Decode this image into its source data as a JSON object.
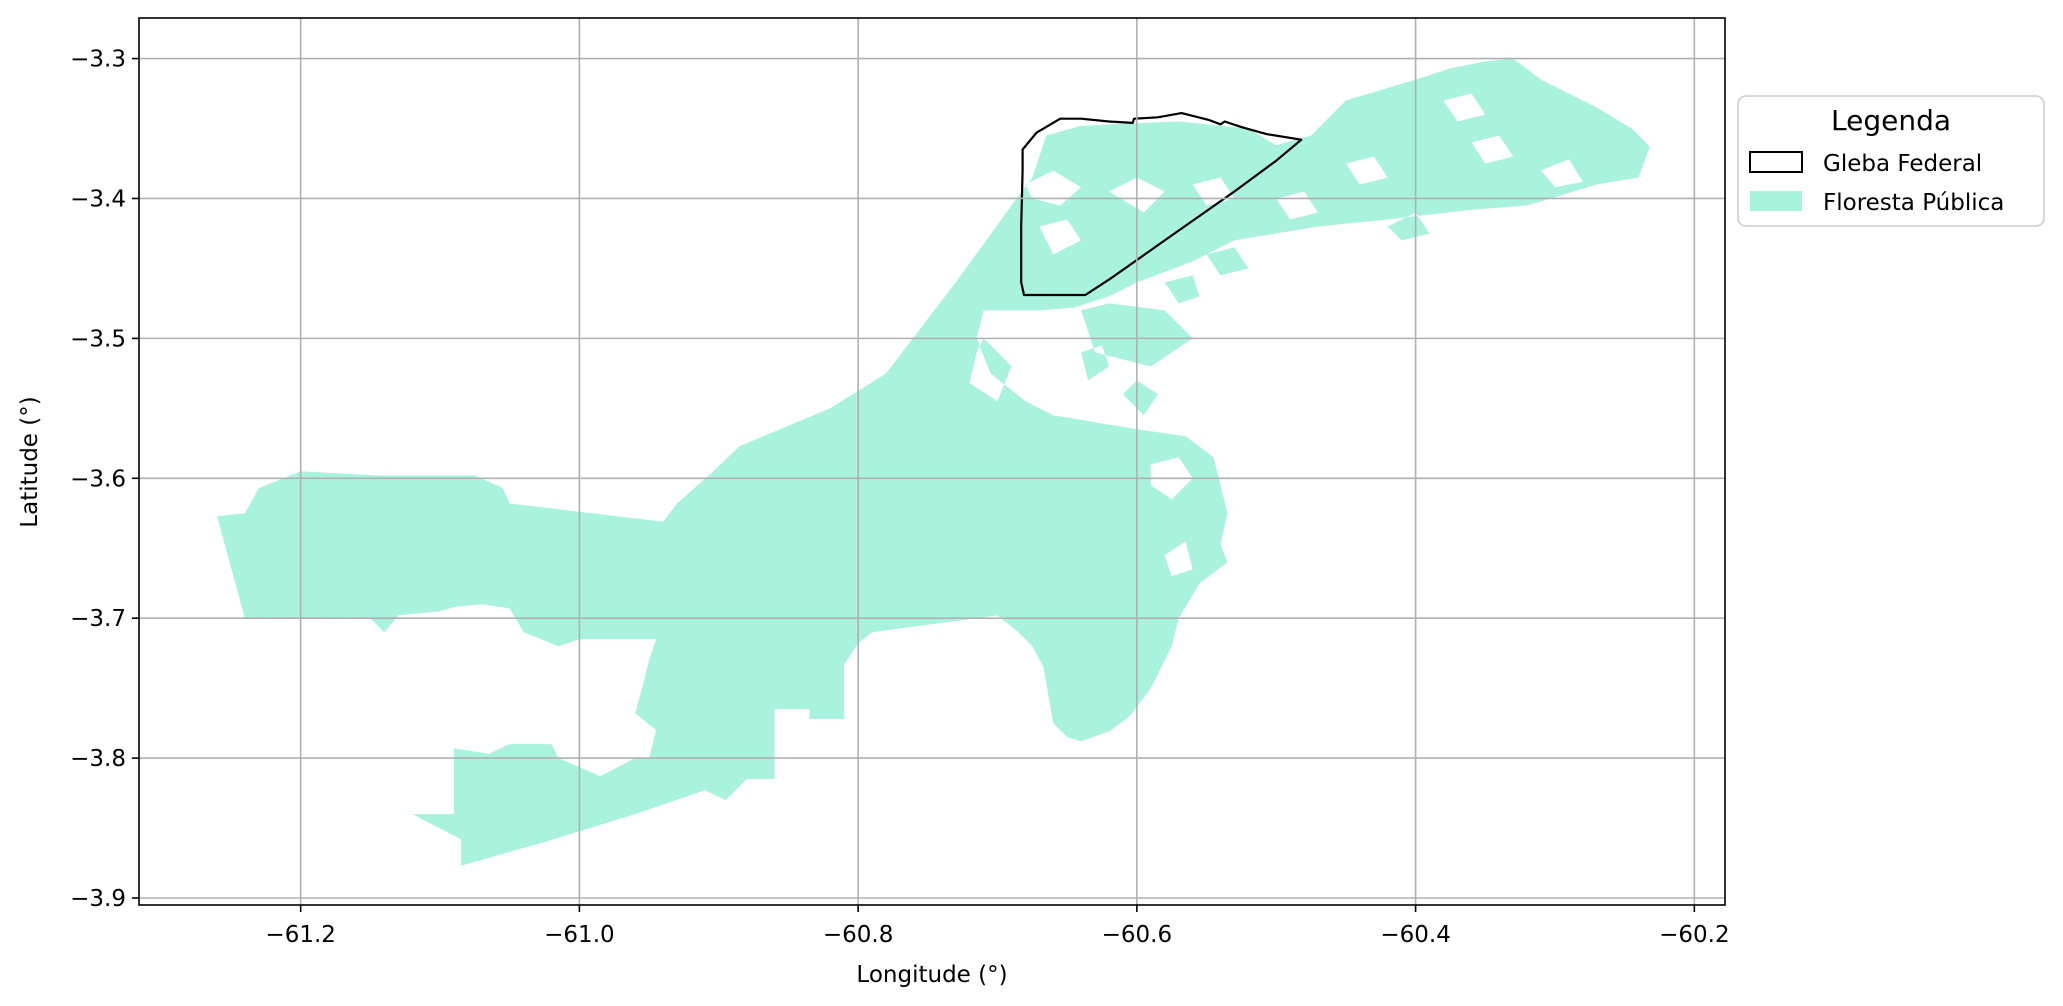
{
  "chart_data": {
    "type": "map",
    "xlabel": "Longitude (°)",
    "ylabel": "Latitude (°)",
    "xlim": [
      -61.316,
      -60.178
    ],
    "ylim": [
      -3.905,
      -3.271
    ],
    "grid": true,
    "x_ticks": [
      {
        "value": -61.2,
        "label": "−61.2"
      },
      {
        "value": -61.0,
        "label": "−61.0"
      },
      {
        "value": -60.8,
        "label": "−60.8"
      },
      {
        "value": -60.6,
        "label": "−60.6"
      },
      {
        "value": -60.4,
        "label": "−60.4"
      },
      {
        "value": -60.2,
        "label": "−60.2"
      }
    ],
    "y_ticks": [
      {
        "value": -3.3,
        "label": "−3.3"
      },
      {
        "value": -3.4,
        "label": "−3.4"
      },
      {
        "value": -3.5,
        "label": "−3.5"
      },
      {
        "value": -3.6,
        "label": "−3.6"
      },
      {
        "value": -3.7,
        "label": "−3.7"
      },
      {
        "value": -3.8,
        "label": "−3.8"
      },
      {
        "value": -3.9,
        "label": "−3.9"
      }
    ],
    "legend": {
      "title": "Legenda",
      "placement": "outside-top-right",
      "items": [
        {
          "label": "Gleba Federal",
          "style": "outline",
          "color": "#000000"
        },
        {
          "label": "Floresta Pública",
          "style": "fill",
          "color": "#a8f2de"
        }
      ]
    },
    "layers": [
      {
        "name": "Floresta Pública",
        "color": "#a8f2de",
        "polygons": [
          [
            [
              -61.26,
              -3.627
            ],
            [
              -61.24,
              -3.625
            ],
            [
              -61.23,
              -3.607
            ],
            [
              -61.2,
              -3.595
            ],
            [
              -61.145,
              -3.598
            ],
            [
              -61.075,
              -3.598
            ],
            [
              -61.055,
              -3.607
            ],
            [
              -61.05,
              -3.618
            ],
            [
              -60.94,
              -3.631
            ],
            [
              -60.93,
              -3.618
            ],
            [
              -60.905,
              -3.596
            ],
            [
              -60.885,
              -3.577
            ],
            [
              -60.82,
              -3.55
            ],
            [
              -60.78,
              -3.525
            ],
            [
              -60.73,
              -3.46
            ],
            [
              -60.69,
              -3.405
            ],
            [
              -60.675,
              -3.385
            ],
            [
              -60.665,
              -3.355
            ],
            [
              -60.64,
              -3.348
            ],
            [
              -60.57,
              -3.345
            ],
            [
              -60.52,
              -3.35
            ],
            [
              -60.5,
              -3.362
            ],
            [
              -60.475,
              -3.355
            ],
            [
              -60.45,
              -3.33
            ],
            [
              -60.4,
              -3.315
            ],
            [
              -60.375,
              -3.307
            ],
            [
              -60.35,
              -3.302
            ],
            [
              -60.33,
              -3.3
            ],
            [
              -60.31,
              -3.315
            ],
            [
              -60.27,
              -3.335
            ],
            [
              -60.245,
              -3.35
            ],
            [
              -60.232,
              -3.363
            ],
            [
              -60.24,
              -3.385
            ],
            [
              -60.27,
              -3.39
            ],
            [
              -60.32,
              -3.405
            ],
            [
              -60.36,
              -3.408
            ],
            [
              -60.42,
              -3.415
            ],
            [
              -60.47,
              -3.42
            ],
            [
              -60.53,
              -3.43
            ],
            [
              -60.56,
              -3.445
            ],
            [
              -60.6,
              -3.46
            ],
            [
              -60.62,
              -3.47
            ],
            [
              -60.645,
              -3.478
            ],
            [
              -60.67,
              -3.48
            ],
            [
              -60.71,
              -3.48
            ],
            [
              -60.715,
              -3.5
            ],
            [
              -60.705,
              -3.525
            ],
            [
              -60.68,
              -3.545
            ],
            [
              -60.66,
              -3.555
            ],
            [
              -60.63,
              -3.56
            ],
            [
              -60.6,
              -3.565
            ],
            [
              -60.565,
              -3.57
            ],
            [
              -60.545,
              -3.585
            ],
            [
              -60.54,
              -3.605
            ],
            [
              -60.535,
              -3.625
            ],
            [
              -60.54,
              -3.647
            ],
            [
              -60.535,
              -3.66
            ],
            [
              -60.555,
              -3.675
            ],
            [
              -60.57,
              -3.7
            ],
            [
              -60.575,
              -3.72
            ],
            [
              -60.59,
              -3.75
            ],
            [
              -60.605,
              -3.77
            ],
            [
              -60.62,
              -3.781
            ],
            [
              -60.64,
              -3.788
            ],
            [
              -60.65,
              -3.785
            ],
            [
              -60.66,
              -3.775
            ],
            [
              -60.667,
              -3.735
            ],
            [
              -60.675,
              -3.72
            ],
            [
              -60.685,
              -3.71
            ],
            [
              -60.7,
              -3.698
            ],
            [
              -60.79,
              -3.71
            ],
            [
              -60.8,
              -3.718
            ],
            [
              -60.81,
              -3.733
            ],
            [
              -60.81,
              -3.772
            ],
            [
              -60.835,
              -3.772
            ],
            [
              -60.835,
              -3.765
            ],
            [
              -60.86,
              -3.765
            ],
            [
              -60.86,
              -3.815
            ],
            [
              -60.88,
              -3.815
            ],
            [
              -60.895,
              -3.83
            ],
            [
              -60.91,
              -3.823
            ],
            [
              -60.96,
              -3.84
            ],
            [
              -61.025,
              -3.86
            ],
            [
              -61.085,
              -3.877
            ],
            [
              -61.085,
              -3.858
            ],
            [
              -61.12,
              -3.84
            ],
            [
              -61.09,
              -3.84
            ],
            [
              -61.09,
              -3.793
            ],
            [
              -61.065,
              -3.797
            ],
            [
              -61.05,
              -3.79
            ],
            [
              -61.02,
              -3.79
            ],
            [
              -61.015,
              -3.8
            ],
            [
              -60.985,
              -3.813
            ],
            [
              -60.96,
              -3.8
            ],
            [
              -60.95,
              -3.8
            ],
            [
              -60.945,
              -3.78
            ],
            [
              -60.96,
              -3.768
            ],
            [
              -60.955,
              -3.75
            ],
            [
              -60.95,
              -3.73
            ],
            [
              -60.945,
              -3.715
            ],
            [
              -61.0,
              -3.715
            ],
            [
              -61.015,
              -3.72
            ],
            [
              -61.04,
              -3.71
            ],
            [
              -61.05,
              -3.693
            ],
            [
              -61.07,
              -3.69
            ],
            [
              -61.09,
              -3.692
            ],
            [
              -61.1,
              -3.695
            ],
            [
              -61.13,
              -3.698
            ],
            [
              -61.14,
              -3.71
            ],
            [
              -61.15,
              -3.7
            ],
            [
              -61.24,
              -3.7
            ]
          ]
        ],
        "holes": [
          [
            [
              -60.71,
              -3.5
            ],
            [
              -60.69,
              -3.52
            ],
            [
              -60.7,
              -3.545
            ],
            [
              -60.72,
              -3.532
            ],
            [
              -60.715,
              -3.51
            ]
          ],
          [
            [
              -60.64,
              -3.48
            ],
            [
              -60.62,
              -3.475
            ],
            [
              -60.58,
              -3.48
            ],
            [
              -60.56,
              -3.5
            ],
            [
              -60.59,
              -3.52
            ],
            [
              -60.63,
              -3.51
            ]
          ],
          [
            [
              -60.61,
              -3.54
            ],
            [
              -60.6,
              -3.53
            ],
            [
              -60.585,
              -3.54
            ],
            [
              -60.595,
              -3.555
            ]
          ],
          [
            [
              -60.59,
              -3.59
            ],
            [
              -60.57,
              -3.585
            ],
            [
              -60.56,
              -3.6
            ],
            [
              -60.575,
              -3.615
            ],
            [
              -60.59,
              -3.605
            ]
          ],
          [
            [
              -60.64,
              -3.51
            ],
            [
              -60.625,
              -3.505
            ],
            [
              -60.62,
              -3.52
            ],
            [
              -60.635,
              -3.53
            ]
          ],
          [
            [
              -60.58,
              -3.655
            ],
            [
              -60.565,
              -3.645
            ],
            [
              -60.56,
              -3.665
            ],
            [
              -60.575,
              -3.67
            ]
          ],
          [
            [
              -60.68,
              -3.39
            ],
            [
              -60.66,
              -3.38
            ],
            [
              -60.64,
              -3.392
            ],
            [
              -60.655,
              -3.405
            ],
            [
              -60.675,
              -3.4
            ]
          ],
          [
            [
              -60.62,
              -3.395
            ],
            [
              -60.6,
              -3.385
            ],
            [
              -60.58,
              -3.395
            ],
            [
              -60.595,
              -3.41
            ]
          ],
          [
            [
              -60.56,
              -3.39
            ],
            [
              -60.54,
              -3.385
            ],
            [
              -60.53,
              -3.4
            ],
            [
              -60.55,
              -3.405
            ]
          ],
          [
            [
              -60.67,
              -3.42
            ],
            [
              -60.65,
              -3.415
            ],
            [
              -60.64,
              -3.43
            ],
            [
              -60.66,
              -3.44
            ]
          ],
          [
            [
              -60.5,
              -3.4
            ],
            [
              -60.48,
              -3.395
            ],
            [
              -60.47,
              -3.41
            ],
            [
              -60.49,
              -3.415
            ]
          ],
          [
            [
              -60.45,
              -3.375
            ],
            [
              -60.43,
              -3.37
            ],
            [
              -60.42,
              -3.385
            ],
            [
              -60.44,
              -3.39
            ]
          ],
          [
            [
              -60.42,
              -3.42
            ],
            [
              -60.4,
              -3.41
            ],
            [
              -60.39,
              -3.425
            ],
            [
              -60.41,
              -3.43
            ]
          ],
          [
            [
              -60.36,
              -3.36
            ],
            [
              -60.34,
              -3.355
            ],
            [
              -60.33,
              -3.37
            ],
            [
              -60.35,
              -3.375
            ]
          ],
          [
            [
              -60.31,
              -3.38
            ],
            [
              -60.29,
              -3.372
            ],
            [
              -60.28,
              -3.388
            ],
            [
              -60.3,
              -3.392
            ]
          ],
          [
            [
              -60.38,
              -3.33
            ],
            [
              -60.36,
              -3.325
            ],
            [
              -60.35,
              -3.34
            ],
            [
              -60.37,
              -3.345
            ]
          ],
          [
            [
              -60.55,
              -3.44
            ],
            [
              -60.53,
              -3.435
            ],
            [
              -60.52,
              -3.45
            ],
            [
              -60.54,
              -3.455
            ]
          ],
          [
            [
              -60.58,
              -3.46
            ],
            [
              -60.56,
              -3.455
            ],
            [
              -60.555,
              -3.47
            ],
            [
              -60.57,
              -3.475
            ]
          ]
        ]
      },
      {
        "name": "Gleba Federal",
        "color": "#000000",
        "polygons": [
          [
            [
              -60.682,
              -3.365
            ],
            [
              -60.672,
              -3.353
            ],
            [
              -60.655,
              -3.343
            ],
            [
              -60.64,
              -3.343
            ],
            [
              -60.62,
              -3.345
            ],
            [
              -60.603,
              -3.346
            ],
            [
              -60.602,
              -3.343
            ],
            [
              -60.585,
              -3.342
            ],
            [
              -60.568,
              -3.339
            ],
            [
              -60.548,
              -3.344
            ],
            [
              -60.54,
              -3.347
            ],
            [
              -60.537,
              -3.345
            ],
            [
              -60.525,
              -3.349
            ],
            [
              -60.507,
              -3.354
            ],
            [
              -60.482,
              -3.358
            ],
            [
              -60.5,
              -3.373
            ],
            [
              -60.53,
              -3.395
            ],
            [
              -60.58,
              -3.43
            ],
            [
              -60.62,
              -3.458
            ],
            [
              -60.637,
              -3.469
            ],
            [
              -60.681,
              -3.469
            ],
            [
              -60.683,
              -3.46
            ],
            [
              -60.683,
              -3.42
            ],
            [
              -60.682,
              -3.38
            ]
          ]
        ]
      }
    ]
  }
}
